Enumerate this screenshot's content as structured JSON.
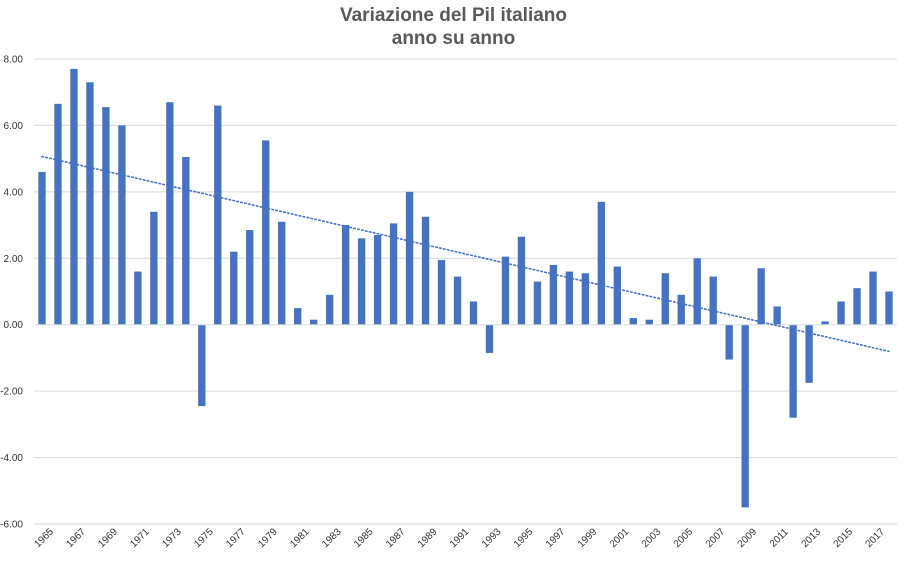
{
  "chart_data": {
    "type": "bar",
    "title": "Variazione del Pil italiano",
    "subtitle": "anno su anno",
    "xlabel": "",
    "ylabel": "",
    "ylim": [
      -6,
      8
    ],
    "yticks": [
      "-6.00",
      "-4.00",
      "-2.00",
      "0.00",
      "2.00",
      "4.00",
      "6.00",
      "8.00"
    ],
    "grid": true,
    "trendline": "linear",
    "bar_color": "#4472c4",
    "trend_color": "#4472c4",
    "categories": [
      "1965",
      "1966",
      "1967",
      "1968",
      "1969",
      "1970",
      "1971",
      "1972",
      "1973",
      "1974",
      "1975",
      "1976",
      "1977",
      "1978",
      "1979",
      "1980",
      "1981",
      "1982",
      "1983",
      "1984",
      "1985",
      "1986",
      "1987",
      "1988",
      "1989",
      "1990",
      "1991",
      "1992",
      "1993",
      "1994",
      "1995",
      "1996",
      "1997",
      "1998",
      "1999",
      "2000",
      "2001",
      "2002",
      "2003",
      "2004",
      "2005",
      "2006",
      "2007",
      "2008",
      "2009",
      "2010",
      "2011",
      "2012",
      "2013",
      "2014",
      "2015",
      "2016",
      "2017",
      "2018"
    ],
    "tick_labels": [
      "1965",
      "1967",
      "1969",
      "1971",
      "1973",
      "1975",
      "1977",
      "1979",
      "1981",
      "1983",
      "1985",
      "1987",
      "1989",
      "1991",
      "1993",
      "1995",
      "1997",
      "1999",
      "2001",
      "2003",
      "2005",
      "2007",
      "2009",
      "2011",
      "2013",
      "2015",
      "2017"
    ],
    "values": [
      4.6,
      6.65,
      7.7,
      7.3,
      6.55,
      6.0,
      1.6,
      3.4,
      6.7,
      5.05,
      -2.45,
      6.6,
      2.2,
      2.85,
      5.55,
      3.1,
      0.5,
      0.15,
      0.9,
      3.0,
      2.6,
      2.7,
      3.05,
      4.0,
      3.25,
      1.95,
      1.45,
      0.7,
      -0.85,
      2.05,
      2.65,
      1.3,
      1.8,
      1.6,
      1.55,
      3.7,
      1.75,
      0.2,
      0.15,
      1.55,
      0.9,
      2.0,
      1.45,
      -1.05,
      -5.5,
      1.7,
      0.55,
      -2.8,
      -1.75,
      0.1,
      0.7,
      1.1,
      1.6,
      1.0
    ]
  }
}
